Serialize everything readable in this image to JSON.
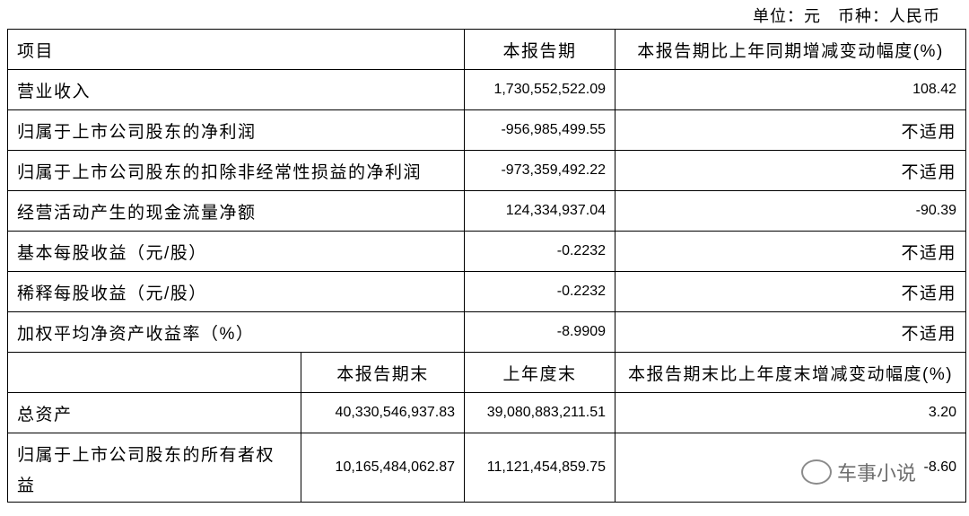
{
  "unit_line": "单位：元　币种：人民币",
  "table1": {
    "header": [
      "项目",
      "本报告期",
      "本报告期比上年同期增减变动幅度(%)"
    ],
    "rows": [
      [
        "营业收入",
        "1,730,552,522.09",
        "108.42"
      ],
      [
        "归属于上市公司股东的净利润",
        "-956,985,499.55",
        "不适用"
      ],
      [
        "归属于上市公司股东的扣除非经常性损益的净利润",
        "-973,359,492.22",
        "不适用"
      ],
      [
        "经营活动产生的现金流量净额",
        "124,334,937.04",
        "-90.39"
      ],
      [
        "基本每股收益（元/股）",
        "-0.2232",
        "不适用"
      ],
      [
        "稀释每股收益（元/股）",
        "-0.2232",
        "不适用"
      ],
      [
        "加权平均净资产收益率（%）",
        "-8.9909",
        "不适用"
      ]
    ]
  },
  "table2": {
    "header": [
      "本报告期末",
      "上年度末",
      "本报告期末比上年度末增减变动幅度(%)"
    ],
    "rows": [
      [
        "总资产",
        "40,330,546,937.83",
        "39,080,883,211.51",
        "3.20"
      ],
      [
        "归属于上市公司股东的所有者权益",
        "10,165,484,062.87",
        "11,121,454,859.75",
        "-8.60"
      ]
    ]
  },
  "watermark": "车事小说"
}
